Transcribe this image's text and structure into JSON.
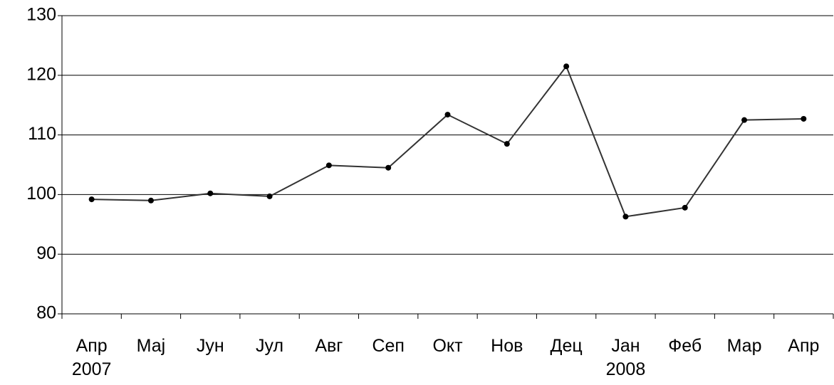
{
  "chart_data": {
    "type": "line",
    "categories": [
      "Апр\n2007",
      "Мај",
      "Јун",
      "Јул",
      "Авг",
      "Сеп",
      "Окт",
      "Нов",
      "Дец",
      "Јан\n2008",
      "Феб",
      "Мар",
      "Апр"
    ],
    "series": [
      {
        "color": "#333333",
        "values": [
          99.2,
          99.0,
          100.2,
          99.7,
          104.9,
          104.5,
          113.4,
          108.5,
          121.5,
          96.3,
          97.8,
          112.5,
          112.7
        ]
      }
    ],
    "ylim": [
      80,
      130
    ],
    "yticks": [
      80,
      90,
      100,
      110,
      120,
      130
    ],
    "grid": true
  }
}
